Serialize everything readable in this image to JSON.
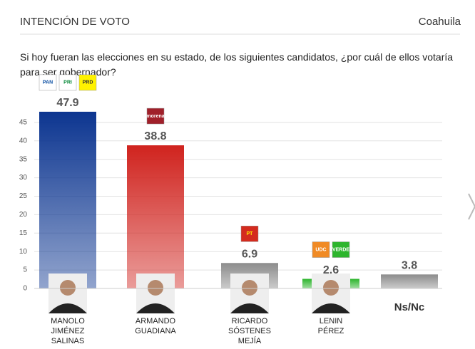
{
  "chart_data": {
    "type": "bar",
    "title": "INTENCIÓN DE VOTO",
    "region": "Coahuila",
    "subtitle": "Si hoy fueran las elecciones en su estado, de los siguientes candidatos, ¿por cuál de ellos votaría para ser gobernador?",
    "categories": [
      "MANOLO JIMÉNEZ SALINAS",
      "ARMANDO GUADIANA",
      "RICARDO SÓSTENES MEJÍA",
      "LENIN PÉREZ",
      "Ns/Nc"
    ],
    "values": [
      47.9,
      38.8,
      6.9,
      2.6,
      3.8
    ],
    "colors": [
      "#0c3590",
      "#d0231e",
      "#8c8c8c",
      "#2db52d",
      "#8c8c8c"
    ],
    "logos": [
      [
        "PAN",
        "PRI",
        "PRD"
      ],
      [
        "morena"
      ],
      [
        "PT"
      ],
      [
        "UDC",
        "VERDE"
      ],
      []
    ],
    "ylim": [
      0,
      50
    ],
    "yticks": [
      0,
      5,
      10,
      15,
      20,
      25,
      30,
      35,
      40,
      45
    ],
    "grid": true
  }
}
